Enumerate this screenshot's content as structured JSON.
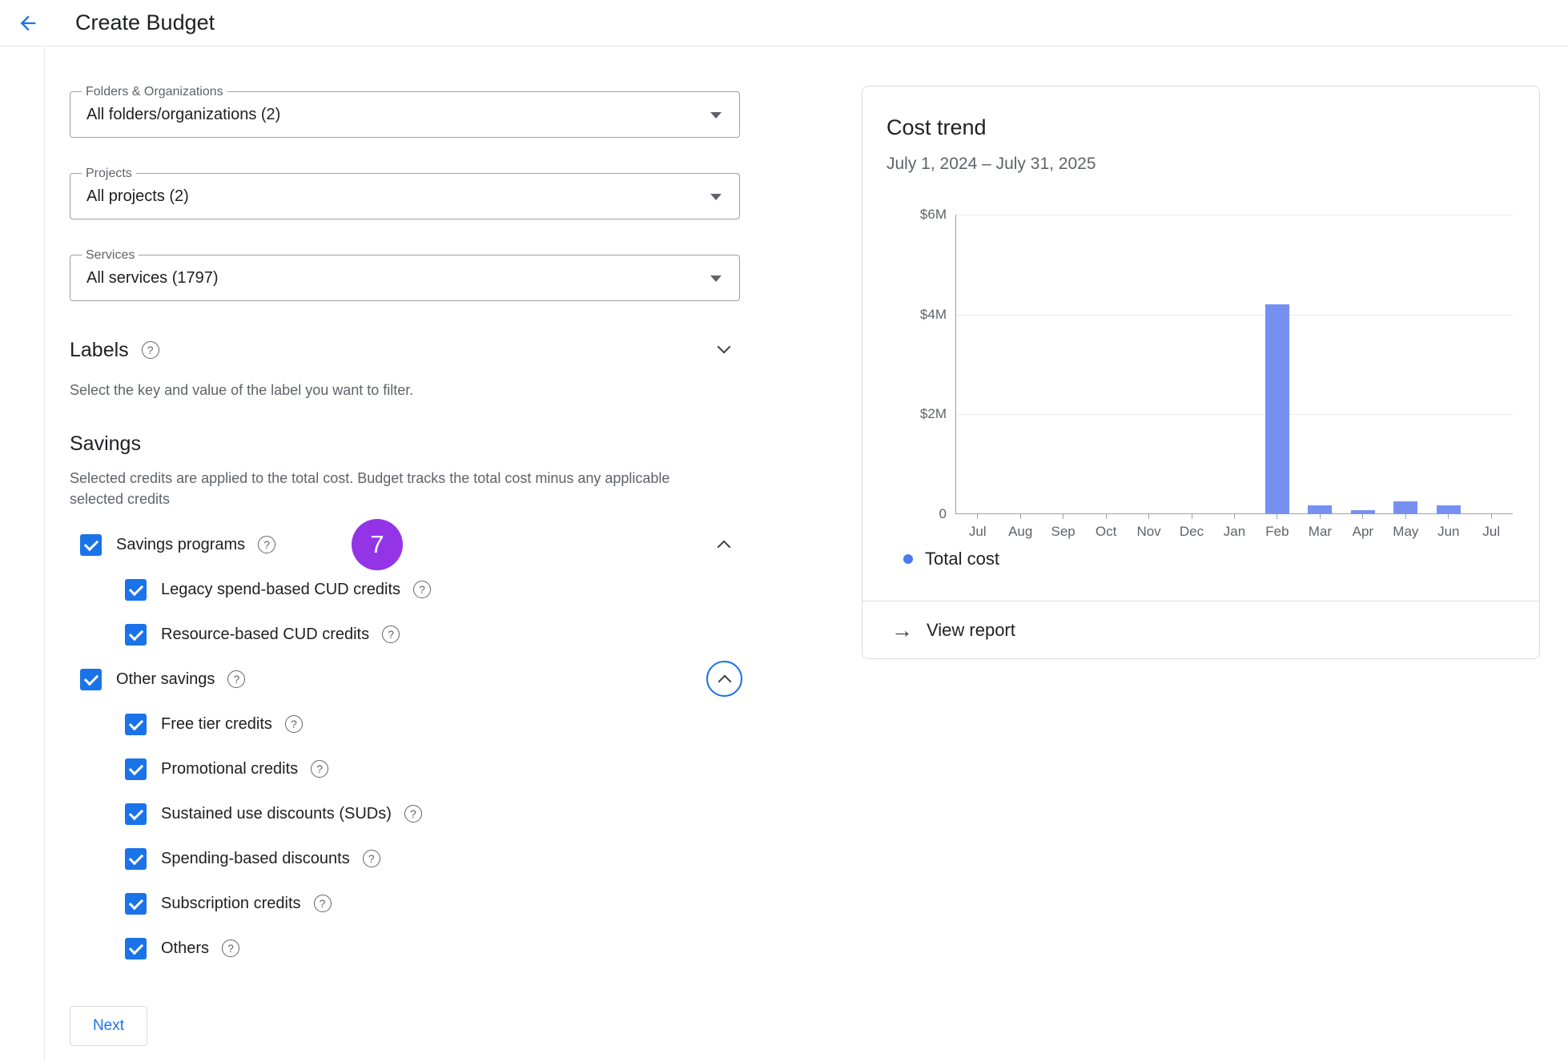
{
  "header": {
    "title": "Create Budget"
  },
  "filters": {
    "folders": {
      "label": "Folders & Organizations",
      "value": "All folders/organizations (2)"
    },
    "projects": {
      "label": "Projects",
      "value": "All projects (2)"
    },
    "services": {
      "label": "Services",
      "value": "All services (1797)"
    }
  },
  "labels_section": {
    "title": "Labels",
    "description": "Select the key and value of the label you want to filter."
  },
  "savings": {
    "title": "Savings",
    "description": "Selected credits are applied to the total cost. Budget tracks the total cost minus any applicable selected credits",
    "selected_count_badge": "7",
    "groups": [
      {
        "label": "Savings programs",
        "checked": true,
        "children": [
          "Legacy spend-based CUD credits",
          "Resource-based CUD credits"
        ]
      },
      {
        "label": "Other savings",
        "checked": true,
        "children": [
          "Free tier credits",
          "Promotional credits",
          "Sustained use discounts (SUDs)",
          "Spending-based discounts",
          "Subscription credits",
          "Others"
        ]
      }
    ]
  },
  "buttons": {
    "next": "Next"
  },
  "cost_trend": {
    "title": "Cost trend",
    "date_range": "July 1, 2024 – July 31, 2025",
    "legend_label": "Total cost",
    "view_report_label": "View report"
  },
  "icons": {
    "help": "?",
    "arrow_right": "→"
  },
  "chart_data": {
    "type": "bar",
    "title": "Cost trend",
    "x": [
      "Jul",
      "Aug",
      "Sep",
      "Oct",
      "Nov",
      "Dec",
      "Jan",
      "Feb",
      "Mar",
      "Apr",
      "May",
      "Jun",
      "Jul"
    ],
    "series": [
      {
        "name": "Total cost",
        "values": [
          0,
          0,
          0,
          0,
          0,
          0,
          0,
          4.2,
          0.18,
          0.08,
          0.26,
          0.18,
          0
        ]
      }
    ],
    "unit": "$M",
    "ylim": [
      0,
      6
    ],
    "y_ticks": [
      {
        "label": "0",
        "value": 0
      },
      {
        "label": "$2M",
        "value": 2
      },
      {
        "label": "$4M",
        "value": 4
      },
      {
        "label": "$6M",
        "value": 6
      }
    ],
    "grid": true,
    "legend_position": "bottom-left",
    "bar_color": "#7690f2",
    "legend_dot_color": "#4a79f0"
  },
  "colors": {
    "accent_blue": "#1a73e8",
    "badge_purple": "#9334e6"
  }
}
